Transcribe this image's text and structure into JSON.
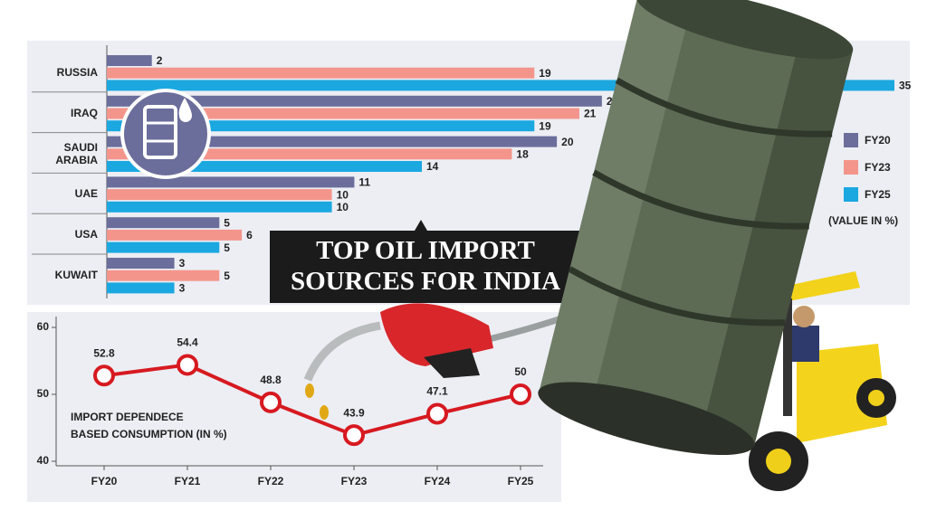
{
  "chart_data": [
    {
      "type": "bar",
      "orientation": "horizontal",
      "title": "TOP OIL IMPORT SOURCES FOR INDIA",
      "note": "(VALUE IN %)",
      "categories": [
        "RUSSIA",
        "IRAQ",
        "SAUDI ARABIA",
        "UAE",
        "USA",
        "KUWAIT"
      ],
      "series": [
        {
          "name": "FY20",
          "color": "#6b6d9b",
          "values": [
            2,
            22,
            20,
            11,
            5,
            3
          ]
        },
        {
          "name": "FY23",
          "color": "#f4958c",
          "values": [
            19,
            21,
            18,
            10,
            6,
            5
          ]
        },
        {
          "name": "FY25",
          "color": "#1ba8e0",
          "values": [
            35,
            19,
            14,
            10,
            5,
            3
          ]
        }
      ],
      "xlim": [
        0,
        35
      ],
      "legend": "right"
    },
    {
      "type": "line",
      "label_lines": [
        "IMPORT DEPENDECE",
        "BASED CONSUMPTION (IN %)"
      ],
      "categories": [
        "FY20",
        "FY21",
        "FY22",
        "FY23",
        "FY24",
        "FY25"
      ],
      "values": [
        52.8,
        54.4,
        48.8,
        43.9,
        47.1,
        50
      ],
      "color": "#d71920",
      "ylim": [
        40,
        60
      ],
      "yticks": [
        40,
        50,
        60
      ]
    }
  ]
}
